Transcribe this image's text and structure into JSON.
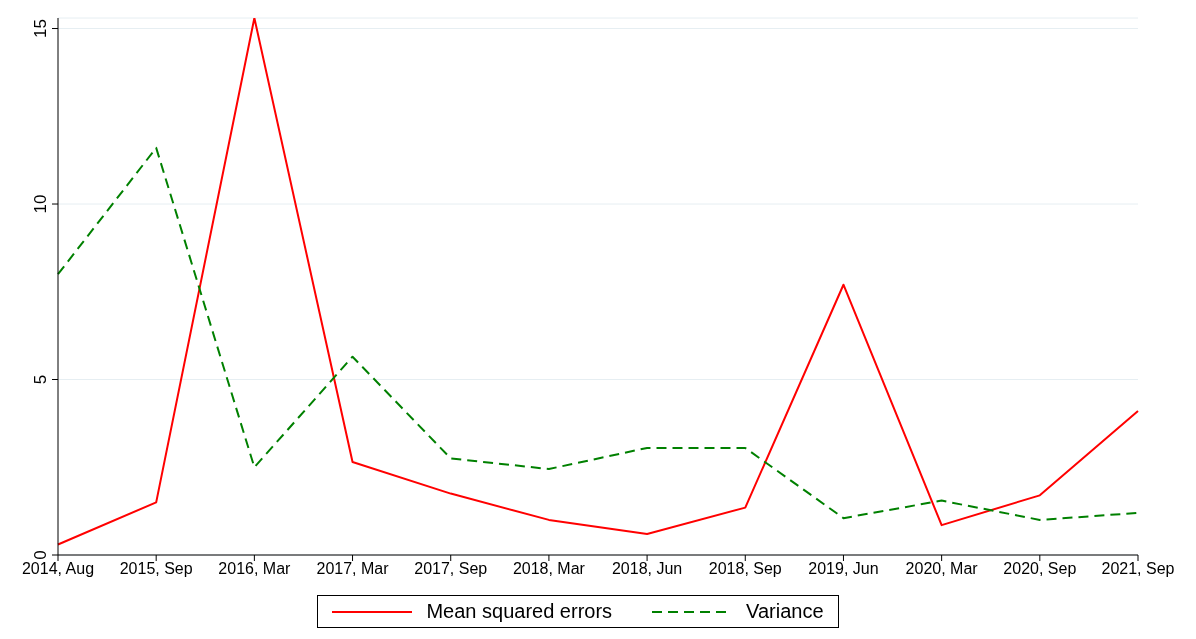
{
  "chart_data": {
    "type": "line",
    "categories": [
      "2014, Aug",
      "2015, Sep",
      "2016, Mar",
      "2017, Mar",
      "2017, Sep",
      "2018, Mar",
      "2018, Jun",
      "2018, Sep",
      "2019, Jun",
      "2020, Mar",
      "2020, Sep",
      "2021, Sep"
    ],
    "series": [
      {
        "name": "Mean squared errors",
        "color": "#ff0000",
        "line_style": "solid",
        "values": [
          0.3,
          1.5,
          15.3,
          2.65,
          1.75,
          1.0,
          0.6,
          1.35,
          7.7,
          0.85,
          1.7,
          4.1
        ]
      },
      {
        "name": "Variance",
        "color": "#008000",
        "line_style": "dashed",
        "values": [
          8.0,
          11.6,
          2.5,
          5.65,
          2.75,
          2.45,
          3.05,
          3.05,
          1.05,
          1.55,
          1.0,
          1.2
        ]
      }
    ],
    "ylim": [
      0,
      15.3
    ],
    "yticks": [
      0,
      5,
      10,
      15
    ],
    "grid": "y",
    "legend": "bottom",
    "marker": "none"
  }
}
